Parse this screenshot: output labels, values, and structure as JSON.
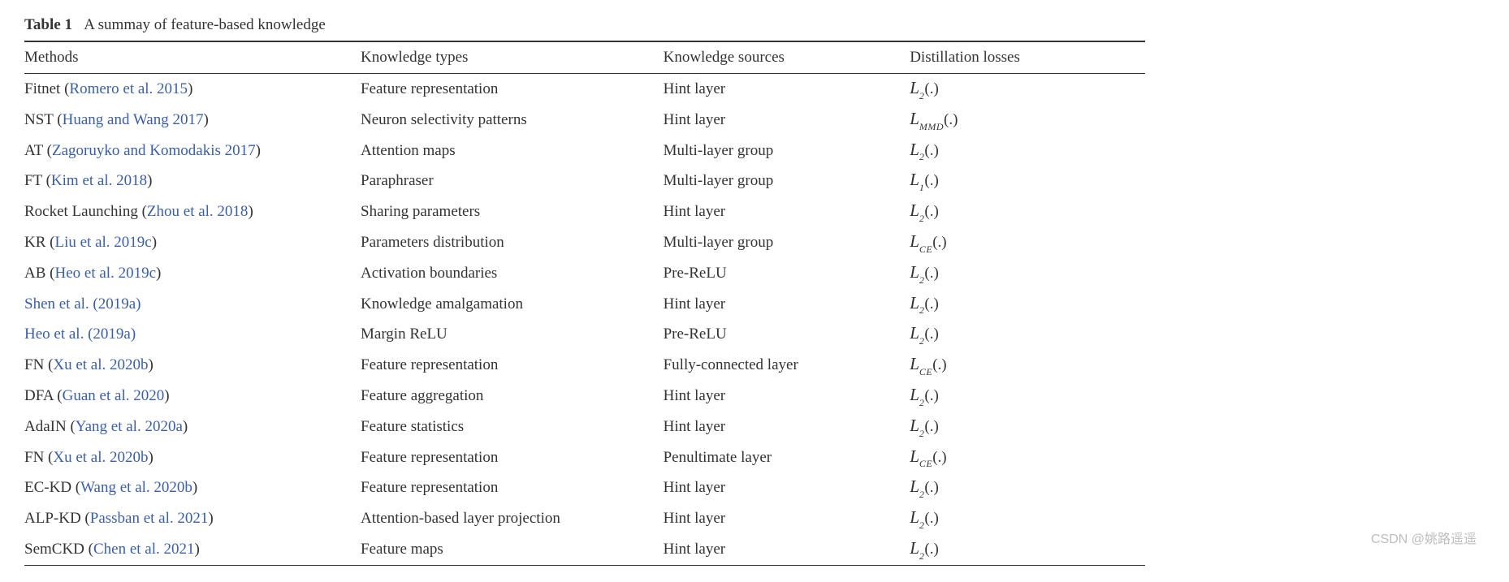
{
  "caption": {
    "label": "Table 1",
    "text": "A summay of feature-based knowledge"
  },
  "columns": [
    "Methods",
    "Knowledge types",
    "Knowledge sources",
    "Distillation losses"
  ],
  "col_widths": [
    "30%",
    "27%",
    "22%",
    "21%"
  ],
  "rows": [
    {
      "method_prefix": "Fitnet (",
      "citation": "Romero et al. 2015",
      "method_suffix": ")",
      "ktype": "Feature representation",
      "ksource": "Hint layer",
      "loss_sub": "2"
    },
    {
      "method_prefix": "NST (",
      "citation": "Huang and Wang 2017",
      "method_suffix": ")",
      "ktype": "Neuron selectivity patterns",
      "ksource": "Hint layer",
      "loss_sub": "MMD"
    },
    {
      "method_prefix": "AT (",
      "citation": "Zagoruyko and Komodakis 2017",
      "method_suffix": ")",
      "ktype": "Attention maps",
      "ksource": "Multi-layer group",
      "loss_sub": "2"
    },
    {
      "method_prefix": "FT (",
      "citation": "Kim et al. 2018",
      "method_suffix": ")",
      "ktype": "Paraphraser",
      "ksource": "Multi-layer group",
      "loss_sub": "1"
    },
    {
      "method_prefix": "Rocket Launching (",
      "citation": "Zhou et al. 2018",
      "method_suffix": ")",
      "ktype": "Sharing parameters",
      "ksource": "Hint layer",
      "loss_sub": "2"
    },
    {
      "method_prefix": "KR (",
      "citation": "Liu et al. 2019c",
      "method_suffix": ")",
      "ktype": "Parameters distribution",
      "ksource": "Multi-layer group",
      "loss_sub": "CE"
    },
    {
      "method_prefix": "AB (",
      "citation": "Heo et al. 2019c",
      "method_suffix": ")",
      "ktype": "Activation boundaries",
      "ksource": "Pre-ReLU",
      "loss_sub": "2"
    },
    {
      "method_prefix": "",
      "citation": "Shen et al. (2019a)",
      "method_suffix": "",
      "ktype": "Knowledge amalgamation",
      "ksource": "Hint layer",
      "loss_sub": "2"
    },
    {
      "method_prefix": "",
      "citation": "Heo et al. (2019a)",
      "method_suffix": "",
      "ktype": "Margin ReLU",
      "ksource": "Pre-ReLU",
      "loss_sub": "2"
    },
    {
      "method_prefix": "FN (",
      "citation": "Xu et al. 2020b",
      "method_suffix": ")",
      "ktype": "Feature representation",
      "ksource": "Fully-connected layer",
      "loss_sub": "CE"
    },
    {
      "method_prefix": "DFA (",
      "citation": "Guan et al. 2020",
      "method_suffix": ")",
      "ktype": "Feature aggregation",
      "ksource": "Hint layer",
      "loss_sub": "2"
    },
    {
      "method_prefix": "AdaIN (",
      "citation": "Yang et al. 2020a",
      "method_suffix": ")",
      "ktype": "Feature statistics",
      "ksource": "Hint layer",
      "loss_sub": "2"
    },
    {
      "method_prefix": "FN (",
      "citation": "Xu et al. 2020b",
      "method_suffix": ")",
      "ktype": "Feature representation",
      "ksource": "Penultimate layer",
      "loss_sub": "CE"
    },
    {
      "method_prefix": "EC-KD (",
      "citation": "Wang et al. 2020b",
      "method_suffix": ")",
      "ktype": "Feature representation",
      "ksource": "Hint layer",
      "loss_sub": "2"
    },
    {
      "method_prefix": "ALP-KD (",
      "citation": "Passban et al. 2021",
      "method_suffix": ")",
      "ktype": "Attention-based layer projection",
      "ksource": "Hint layer",
      "loss_sub": "2"
    },
    {
      "method_prefix": "SemCKD (",
      "citation": "Chen et al. 2021",
      "method_suffix": ")",
      "ktype": "Feature maps",
      "ksource": "Hint layer",
      "loss_sub": "2"
    }
  ],
  "loss_symbol": "L",
  "loss_suffix": "(.)",
  "watermark": "CSDN @姚路遥遥",
  "colors": {
    "text": "#333333",
    "rule": "#333333",
    "link": "#3a5fa8",
    "background": "#ffffff",
    "watermark": "#bdbdbd"
  },
  "typography": {
    "body_family": "Times New Roman, serif",
    "body_size_pt": 14,
    "loss_symbol_family": "Brush Script MT, cursive"
  }
}
